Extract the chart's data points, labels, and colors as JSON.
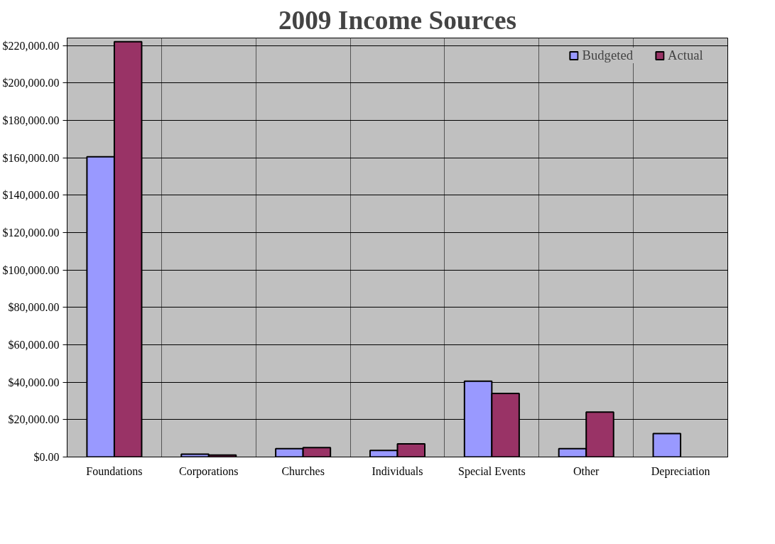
{
  "chart_data": {
    "type": "bar",
    "title": "2009 Income Sources",
    "categories": [
      "Foundations",
      "Corporations",
      "Churches",
      "Individuals",
      "Special Events",
      "Other",
      "Depreciation"
    ],
    "series": [
      {
        "name": "Budgeted",
        "color": "#9999ff",
        "values": [
          160500,
          1500,
          4500,
          3500,
          40500,
          4500,
          12500
        ]
      },
      {
        "name": "Actual",
        "color": "#993366",
        "values": [
          222000,
          1000,
          5000,
          7000,
          34000,
          24000,
          null
        ]
      }
    ],
    "ylim": [
      0,
      224000
    ],
    "yticks": [
      {
        "value": 0,
        "label": "$0.00"
      },
      {
        "value": 20000,
        "label": "$20,000.00"
      },
      {
        "value": 40000,
        "label": "$40,000.00"
      },
      {
        "value": 60000,
        "label": "$60,000.00"
      },
      {
        "value": 80000,
        "label": "$80,000.00"
      },
      {
        "value": 100000,
        "label": "$100,000.00"
      },
      {
        "value": 120000,
        "label": "$120,000.00"
      },
      {
        "value": 140000,
        "label": "$140,000.00"
      },
      {
        "value": 160000,
        "label": "$160,000.00"
      },
      {
        "value": 180000,
        "label": "$180,000.00"
      },
      {
        "value": 200000,
        "label": "$200,000.00"
      },
      {
        "value": 220000,
        "label": "$220,000.00"
      }
    ],
    "grid": true,
    "legend": "top right"
  }
}
